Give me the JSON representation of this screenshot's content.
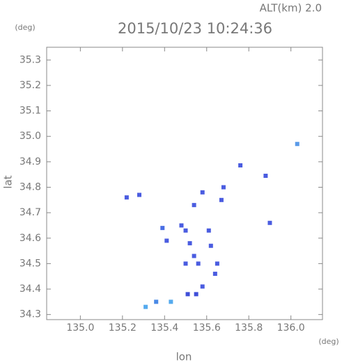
{
  "chart_data": {
    "type": "scatter",
    "title": "2015/10/23 10:24:36",
    "subtitle": "ALT(km) 2.0",
    "x_label": "lon",
    "x_unit": "(deg)",
    "y_label": "lat",
    "y_unit": "(deg)",
    "xlim": [
      134.84,
      136.15
    ],
    "ylim": [
      34.28,
      35.35
    ],
    "xticks": [
      {
        "value": 135,
        "label": "135.0"
      },
      135.2,
      135.4,
      135.6,
      135.8,
      {
        "value": 136,
        "label": "136.0"
      }
    ],
    "yticks": [
      34.3,
      34.4,
      34.5,
      34.6,
      34.7,
      34.8,
      34.9,
      {
        "value": 35,
        "label": "35.0"
      },
      35.1,
      35.2,
      35.3
    ],
    "x": [
      136.03,
      135.76,
      135.88,
      135.9,
      135.68,
      135.58,
      135.22,
      135.28,
      135.67,
      135.39,
      135.41,
      135.48,
      135.5,
      135.52,
      135.54,
      135.5,
      135.56,
      135.61,
      135.62,
      135.65,
      135.64,
      135.58,
      135.51,
      135.55,
      135.43,
      135.36,
      135.31,
      135.54
    ],
    "y": [
      34.97,
      34.886,
      34.845,
      34.66,
      34.8,
      34.78,
      34.76,
      34.77,
      34.75,
      34.64,
      34.59,
      34.65,
      34.63,
      34.58,
      34.53,
      34.5,
      34.5,
      34.63,
      34.57,
      34.5,
      34.46,
      34.41,
      34.38,
      34.38,
      34.35,
      34.35,
      34.33,
      34.73
    ],
    "colors": [
      "#5a9ae8",
      "#4a5ce0",
      "#4a5ce0",
      "#4a5ce0",
      "#4a5ce0",
      "#4a5ce0",
      "#4a5ce0",
      "#4a5ce0",
      "#4a5ce0",
      "#4a6ee4",
      "#4a5ce0",
      "#4a5ce0",
      "#4a5ce0",
      "#4a5ce0",
      "#4a5ce0",
      "#4a5ce0",
      "#4a5ce0",
      "#4a5ce0",
      "#4a5ce0",
      "#4a5ce0",
      "#4a5ce0",
      "#4a5ce0",
      "#3f4fd8",
      "#3f4fd8",
      "#55aaee",
      "#4a8ae6",
      "#55aaee",
      "#4a5ce0"
    ]
  }
}
